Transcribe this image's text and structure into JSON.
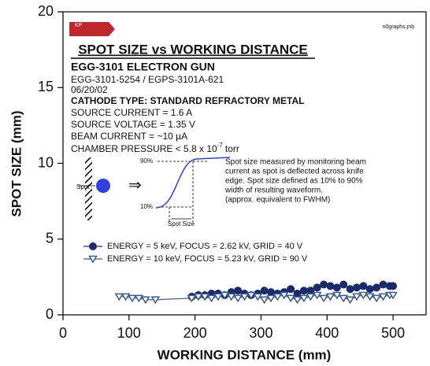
{
  "logo": "KP",
  "chart_data": {
    "type": "line",
    "title": "SPOT SIZE vs WORKING DISTANCE",
    "subtitle": "EGG-3101 ELECTRON GUN",
    "model": "EGG-3101-5254 / EGPS-3101A-621",
    "date": "06/20/02",
    "cathode": "CATHODE TYPE:  STANDARD REFRACTORY METAL",
    "specs": [
      "SOURCE CURRENT = 1.6 A",
      "SOURCE VOLTAGE = 1.35 V",
      "BEAM CURRENT = ~10 µA"
    ],
    "pressure": {
      "base": "CHAMBER PRESSURE < 5.8 x 10",
      "exponent": "-7",
      "unit": "torr"
    },
    "file_name": "n0graphs.jnb",
    "inset": {
      "spot": "Spot",
      "high": "90%",
      "low": "10%",
      "size": "Spot Size",
      "note": [
        "Spot size measured by monitoring beam",
        "current as spot is deflected across knife",
        "edge. Spot size defined as 10% to 90%",
        "width of resulting waveform.",
        "(approx. equivalent to FWHM)"
      ]
    },
    "x_label": "WORKING DISTANCE (mm)",
    "y_label": "SPOT SIZE (mm)",
    "xlim": [
      0,
      550
    ],
    "xticks": [
      0,
      100,
      200,
      300,
      400,
      500
    ],
    "ylim": [
      0,
      20
    ],
    "yticks": [
      0,
      5,
      10,
      15,
      20
    ],
    "series": [
      {
        "name": "ENERGY = 5 keV, FOCUS = 2.62 kV, GRID = 40 V",
        "color": "#1a2a6c",
        "marker": "circle",
        "x": [
          195,
          205,
          215,
          225,
          235,
          245,
          255,
          265,
          275,
          285,
          295,
          305,
          315,
          325,
          335,
          345,
          355,
          365,
          375,
          385,
          395,
          405,
          415,
          425,
          435,
          445,
          455,
          465,
          475,
          485,
          495,
          500
        ],
        "values": [
          1.2,
          1.3,
          1.3,
          1.4,
          1.4,
          1.3,
          1.5,
          1.6,
          1.4,
          1.3,
          1.4,
          1.6,
          1.5,
          1.4,
          1.5,
          1.7,
          1.4,
          1.6,
          1.6,
          1.8,
          2.0,
          1.9,
          1.8,
          2.0,
          1.7,
          1.8,
          1.9,
          1.7,
          1.8,
          2.0,
          1.9,
          1.9
        ]
      },
      {
        "name": "ENERGY = 10 keV, FOCUS = 5.23 kV, GRID = 90 V",
        "color": "#3a5a8c",
        "marker": "triangle",
        "x": [
          85,
          95,
          105,
          115,
          125,
          140,
          195,
          205,
          215,
          225,
          235,
          245,
          255,
          265,
          275,
          285,
          295,
          305,
          315,
          325,
          335,
          345,
          355,
          365,
          375,
          385,
          395,
          405,
          415,
          425,
          435,
          445,
          455,
          465,
          475,
          485,
          495,
          500
        ],
        "values": [
          1.2,
          1.2,
          1.1,
          1.1,
          1.0,
          1.0,
          1.1,
          1.2,
          1.2,
          1.1,
          1.2,
          1.3,
          1.2,
          1.1,
          1.2,
          1.3,
          1.2,
          1.0,
          1.1,
          1.2,
          1.3,
          1.1,
          1.0,
          1.1,
          1.2,
          1.3,
          1.1,
          1.2,
          1.3,
          1.1,
          1.0,
          1.2,
          1.3,
          1.2,
          1.1,
          1.2,
          1.3,
          1.3
        ]
      }
    ]
  }
}
